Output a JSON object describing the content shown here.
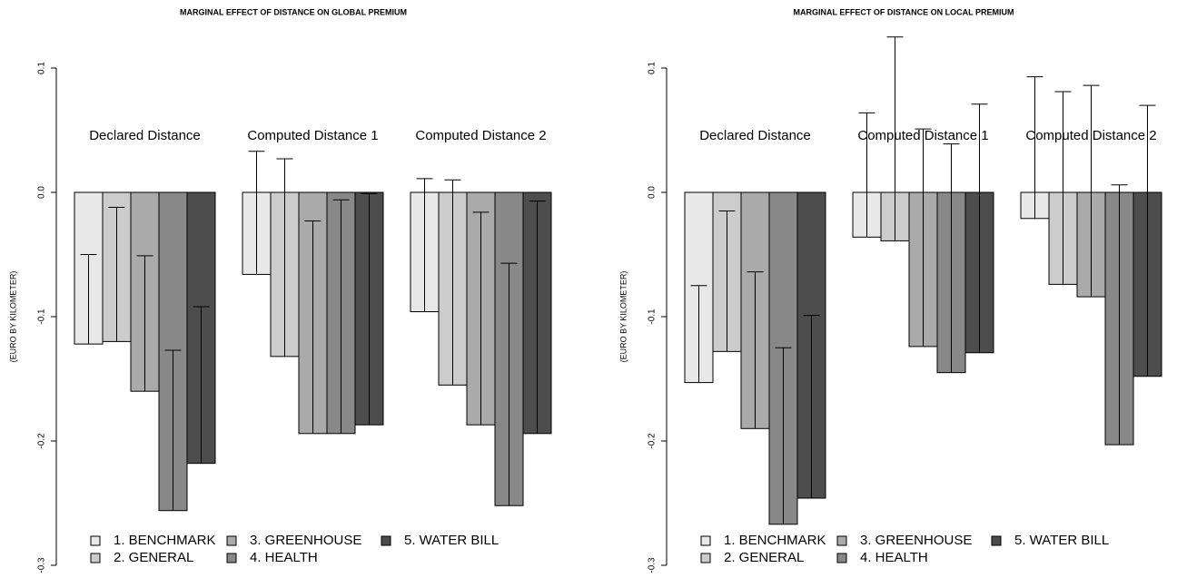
{
  "chart_data": [
    {
      "type": "bar",
      "title": "MARGINAL EFFECT OF DISTANCE ON GLOBAL PREMIUM",
      "ylabel": "(EURO BY KILOMETER)",
      "categories": [
        "Declared Distance",
        "Computed Distance 1",
        "Computed Distance 2"
      ],
      "ylim": [
        -0.3,
        0.1
      ],
      "yticks": [
        -0.3,
        -0.2,
        -0.1,
        {
          "value": 0,
          "label": "0.0"
        },
        0.1
      ],
      "series": [
        {
          "name": "1. BENCHMARK",
          "color": "#e8e8e8",
          "values": [
            -0.122,
            -0.066,
            -0.096
          ],
          "upper": [
            -0.05,
            0.033,
            0.011
          ]
        },
        {
          "name": "2. GENERAL",
          "color": "#cccccc",
          "values": [
            -0.12,
            -0.132,
            -0.155
          ],
          "upper": [
            -0.012,
            0.027,
            0.01
          ]
        },
        {
          "name": "3. GREENHOUSE",
          "color": "#aaaaaa",
          "values": [
            -0.16,
            -0.194,
            -0.187
          ],
          "upper": [
            -0.051,
            -0.023,
            -0.016
          ]
        },
        {
          "name": "4. HEALTH",
          "color": "#888888",
          "values": [
            -0.256,
            -0.194,
            -0.252
          ],
          "upper": [
            -0.127,
            -0.006,
            -0.057
          ]
        },
        {
          "name": "5. WATER BILL",
          "color": "#4d4d4d",
          "values": [
            -0.218,
            -0.187,
            -0.194
          ],
          "upper": [
            -0.092,
            -0.001,
            -0.007
          ]
        }
      ]
    },
    {
      "type": "bar",
      "title": "MARGINAL EFFECT OF DISTANCE ON LOCAL PREMIUM",
      "ylabel": "(EURO BY KILOMETER)",
      "categories": [
        "Declared Distance",
        "Computed Distance 1",
        "Computed Distance 2"
      ],
      "ylim": [
        -0.3,
        0.1
      ],
      "yticks": [
        -0.3,
        -0.2,
        -0.1,
        {
          "value": 0,
          "label": "0.0"
        },
        0.1
      ],
      "series": [
        {
          "name": "1. BENCHMARK",
          "color": "#e8e8e8",
          "values": [
            -0.153,
            -0.036,
            -0.021
          ],
          "upper": [
            -0.075,
            0.064,
            0.093
          ]
        },
        {
          "name": "2. GENERAL",
          "color": "#cccccc",
          "values": [
            -0.128,
            -0.039,
            -0.074
          ],
          "upper": [
            -0.015,
            0.125,
            0.081
          ]
        },
        {
          "name": "3. GREENHOUSE",
          "color": "#aaaaaa",
          "values": [
            -0.19,
            -0.124,
            -0.084
          ],
          "upper": [
            -0.064,
            0.051,
            0.086
          ]
        },
        {
          "name": "4. HEALTH",
          "color": "#888888",
          "values": [
            -0.267,
            -0.145,
            -0.203
          ],
          "upper": [
            -0.125,
            0.039,
            0.006
          ]
        },
        {
          "name": "5. WATER BILL",
          "color": "#4d4d4d",
          "values": [
            -0.246,
            -0.129,
            -0.148
          ],
          "upper": [
            -0.099,
            0.071,
            0.07
          ]
        }
      ]
    }
  ]
}
